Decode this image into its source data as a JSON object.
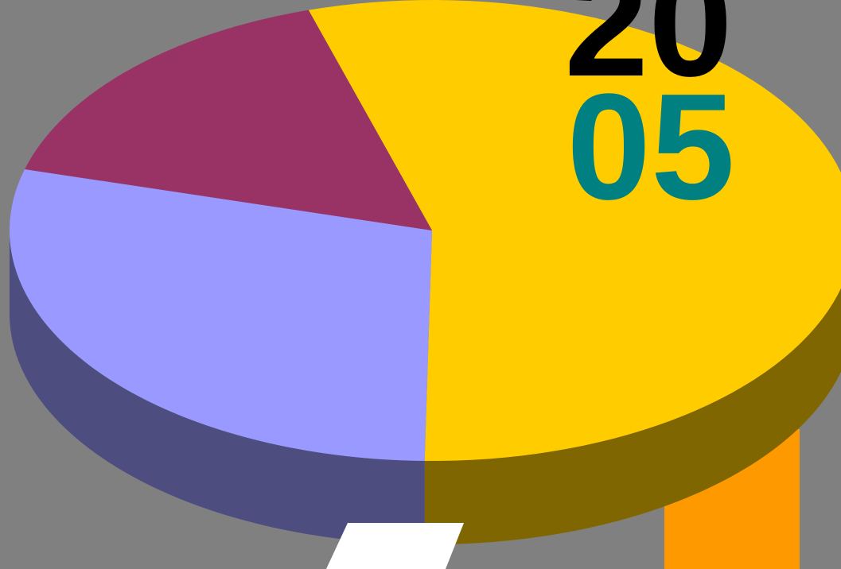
{
  "chart_data": {
    "type": "pie",
    "values": [
      55,
      29,
      16
    ],
    "colors": [
      "#ffcc00",
      "#9999ff",
      "#993366"
    ],
    "annotations": [
      "20",
      "05"
    ],
    "annotation_colors": [
      "#000000",
      "#008080"
    ]
  }
}
